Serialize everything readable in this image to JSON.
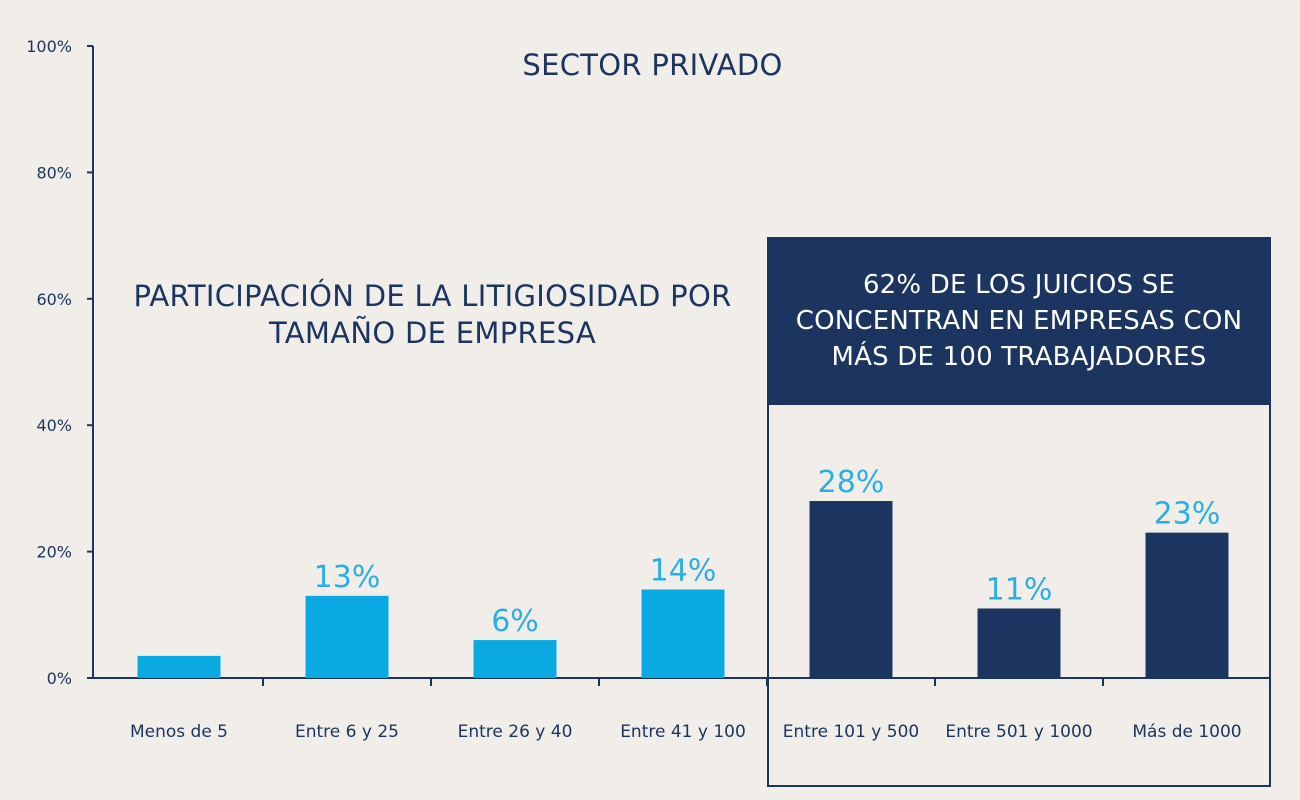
{
  "chart_data": {
    "type": "bar",
    "title": "SECTOR PRIVADO",
    "subtitle": "PARTICIPACIÓN DE LA LITIGIOSIDAD POR TAMAÑO DE EMPRESA",
    "categories": [
      "Menos de 5",
      "Entre 6 y 25",
      "Entre 26 y 40",
      "Entre 41 y 100",
      "Entre 101 y 500",
      "Entre 501 y 1000",
      "Más de 1000"
    ],
    "values": [
      3.5,
      13,
      6,
      14,
      28,
      11,
      23
    ],
    "data_labels": [
      "",
      "13%",
      "6%",
      "14%",
      "28%",
      "11%",
      "23%"
    ],
    "ylim": [
      0,
      100
    ],
    "yticks": [
      "0%",
      "20%",
      "40%",
      "60%",
      "80%",
      "100%"
    ],
    "ytick_values": [
      0,
      20,
      40,
      60,
      80,
      100
    ],
    "grid": false,
    "highlight": {
      "text": "62% DE LOS JUICIOS SE CONCENTRAN EN EMPRESAS CON MÁS DE 100 TRABAJADORES",
      "start_index": 4
    },
    "colors": {
      "light_bar": "#0aa9e2",
      "dark_bar": "#1c3560",
      "label_color": "#2aaee6",
      "axis": "#1c3560",
      "background": "#f1eeea"
    }
  }
}
